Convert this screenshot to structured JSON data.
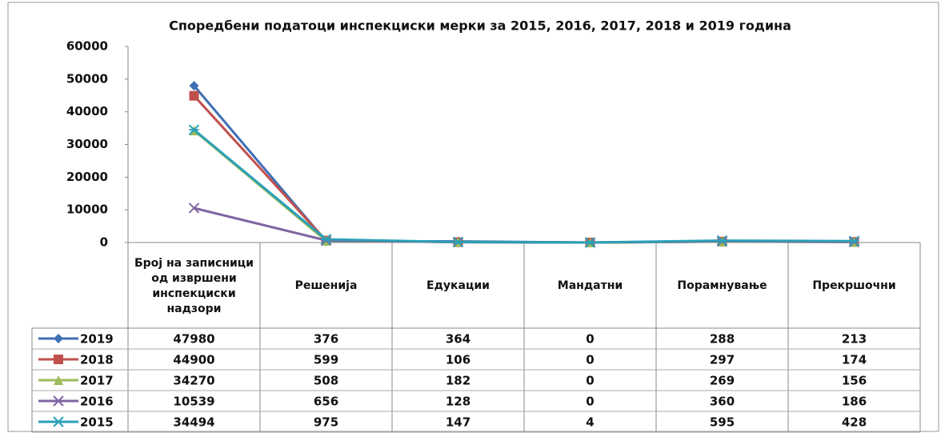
{
  "chart_data": {
    "type": "line",
    "title": "Споредбени податоци инспекциски мерки за 2015, 2016, 2017, 2018 и 2019 година",
    "categories": [
      "Број на записници од извршени инспекциски надзори",
      "Решенија",
      "Едукации",
      "Мандатни",
      "Порамнување",
      "Прекршочни"
    ],
    "series": [
      {
        "name": "2019",
        "color": "#3f6fb5",
        "marker": "diamond",
        "values": [
          47980,
          376,
          364,
          0,
          288,
          213
        ]
      },
      {
        "name": "2018",
        "color": "#c0504d",
        "marker": "square",
        "values": [
          44900,
          599,
          106,
          0,
          297,
          174
        ]
      },
      {
        "name": "2017",
        "color": "#9bbb59",
        "marker": "triangle",
        "values": [
          34270,
          508,
          182,
          0,
          269,
          156
        ]
      },
      {
        "name": "2016",
        "color": "#8064a2",
        "marker": "x",
        "values": [
          10539,
          656,
          128,
          0,
          360,
          186
        ]
      },
      {
        "name": "2015",
        "color": "#2aa0b8",
        "marker": "star",
        "values": [
          34494,
          975,
          147,
          4,
          595,
          428
        ]
      }
    ],
    "ylim": [
      0,
      60000
    ],
    "yticks": [
      0,
      10000,
      20000,
      30000,
      40000,
      50000,
      60000
    ],
    "grid": false
  }
}
